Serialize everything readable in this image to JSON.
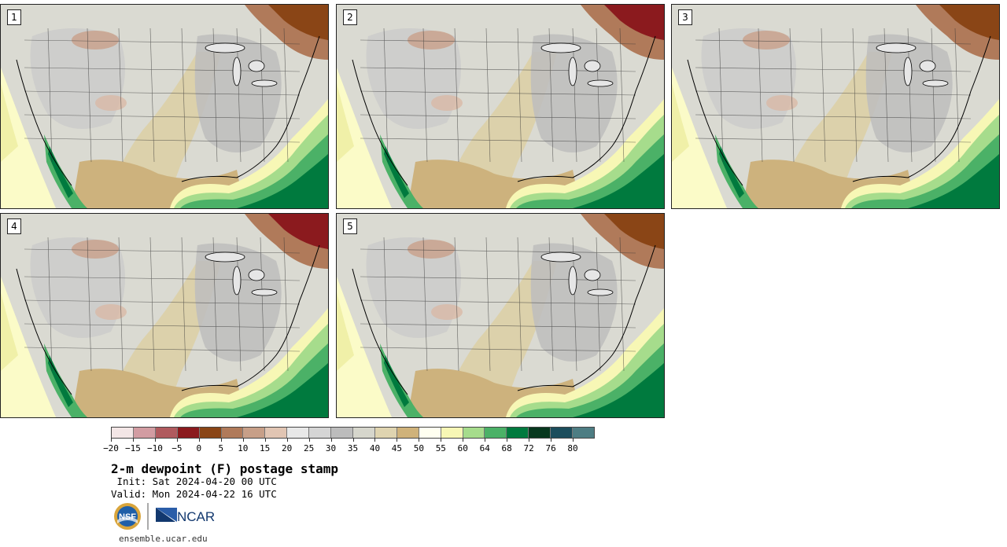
{
  "panels": [
    {
      "label": "1"
    },
    {
      "label": "2"
    },
    {
      "label": "3"
    },
    {
      "label": "4"
    },
    {
      "label": "5"
    }
  ],
  "colorbar": {
    "colors": [
      "#f3e6e6",
      "#d29ca2",
      "#b05a5e",
      "#8b1a1e",
      "#8a4516",
      "#b07a5a",
      "#c79f88",
      "#e1c5b3",
      "#e8e8e8",
      "#d5d5d5",
      "#bcbcbc",
      "#d6d6cc",
      "#dfd4b0",
      "#cfb27a",
      "#fffff0",
      "#f7f7b5",
      "#a6dc8c",
      "#4bb167",
      "#007a3e",
      "#07381e",
      "#1b4d5c",
      "#4d7d83"
    ],
    "tick_labels": [
      "-20",
      "-15",
      "-10",
      "-5",
      "0",
      "5",
      "10",
      "15",
      "20",
      "25",
      "30",
      "35",
      "40",
      "45",
      "50",
      "55",
      "60",
      "64",
      "68",
      "72",
      "76",
      "80"
    ]
  },
  "title": "2-m dewpoint (F) postage stamp",
  "init": " Init: Sat 2024-04-20 00 UTC",
  "valid": "Valid: Mon 2024-04-22 16 UTC",
  "logos": {
    "nsf_text": "NSF",
    "ncar_text": "NCAR"
  },
  "url": "ensemble.ucar.edu"
}
